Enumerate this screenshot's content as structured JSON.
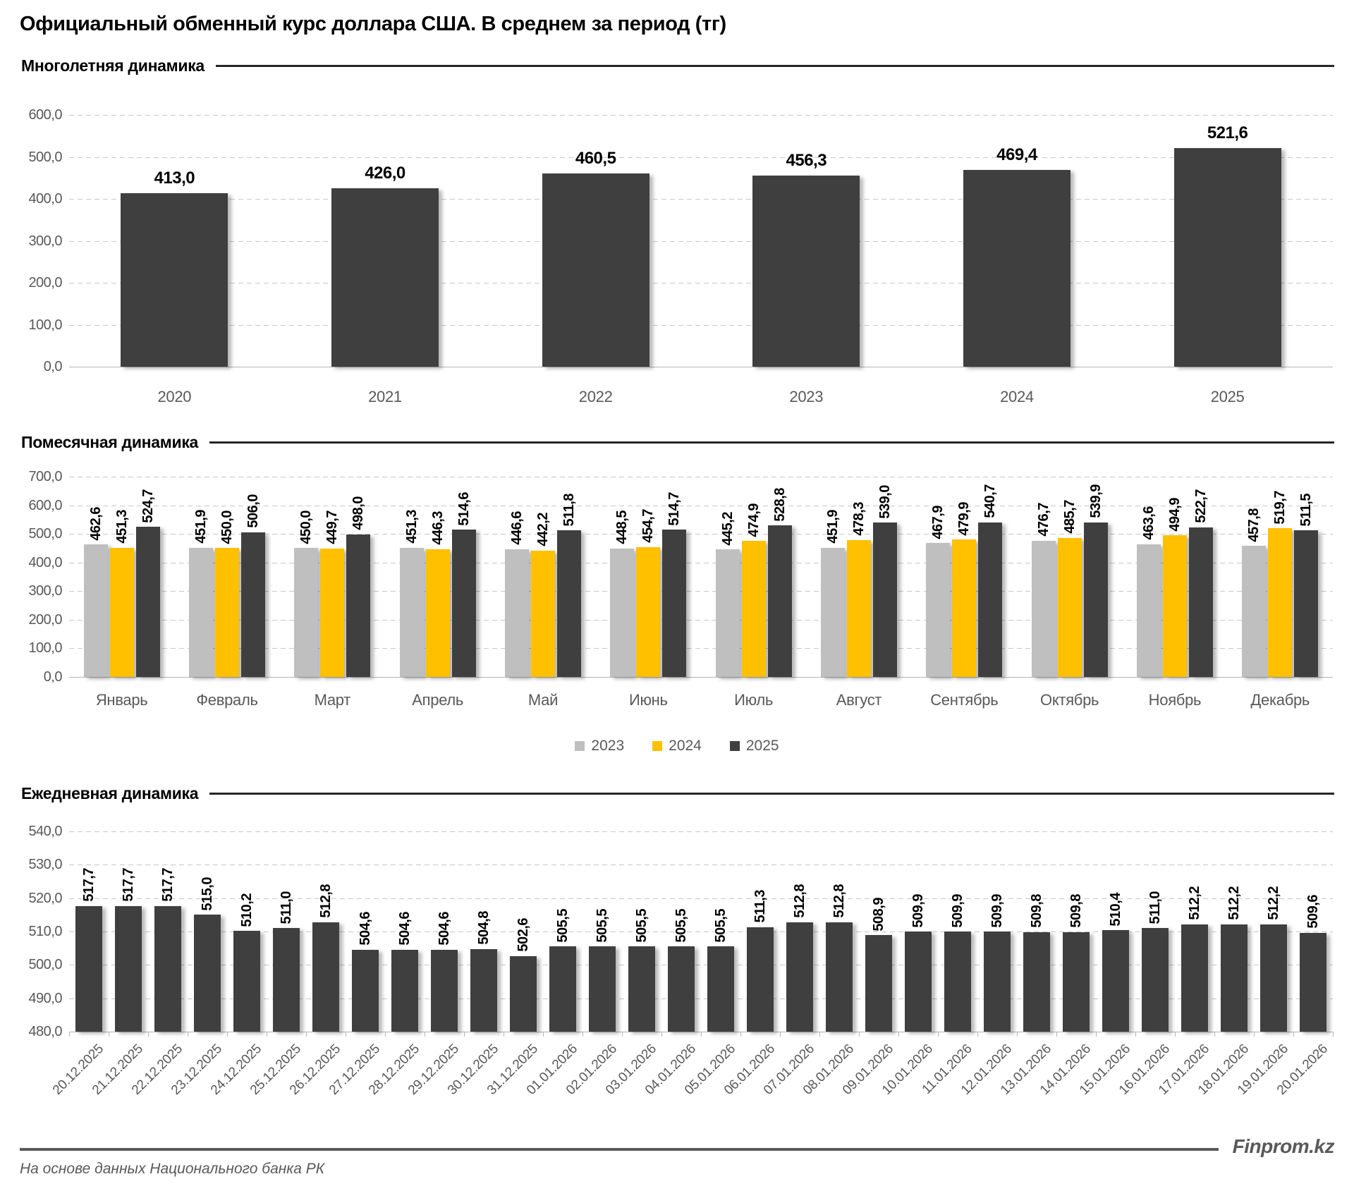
{
  "title": "Официальный обменный курс доллара США. В среднем за период (тг)",
  "footer": {
    "source_note": "На основе данных Национального банка РК",
    "brand": "Finprom.kz"
  },
  "colors": {
    "bar_dark": "#3F3F3F",
    "bar_yellow": "#FFC000",
    "bar_gray": "#BFBFBF",
    "axis_text": "#595959",
    "gridline": "#C7C7C7"
  },
  "chart_data": [
    {
      "type": "bar",
      "section_title": "Многолетняя динамика",
      "categories": [
        "2020",
        "2021",
        "2022",
        "2023",
        "2024",
        "2025"
      ],
      "values": [
        413.0,
        426.0,
        460.5,
        456.3,
        469.4,
        521.6
      ],
      "bar_color": "#3F3F3F",
      "ylim": [
        0,
        600
      ],
      "ytick_step": 100,
      "grid": true,
      "legend_position": "none"
    },
    {
      "type": "bar",
      "section_title": "Помесячная динамика",
      "categories": [
        "Январь",
        "Февраль",
        "Март",
        "Апрель",
        "Май",
        "Июнь",
        "Июль",
        "Август",
        "Сентябрь",
        "Октябрь",
        "Ноябрь",
        "Декабрь"
      ],
      "series": [
        {
          "name": "2023",
          "color": "#BFBFBF",
          "values": [
            462.6,
            451.9,
            450.0,
            451.3,
            446.6,
            448.5,
            445.2,
            451.9,
            467.9,
            476.7,
            463.6,
            457.8
          ]
        },
        {
          "name": "2024",
          "color": "#FFC000",
          "values": [
            451.3,
            450.0,
            449.7,
            446.3,
            442.2,
            454.7,
            474.9,
            478.3,
            479.9,
            485.7,
            494.9,
            519.7
          ]
        },
        {
          "name": "2025",
          "color": "#3F3F3F",
          "values": [
            524.7,
            506.0,
            498.0,
            514.6,
            511.8,
            514.7,
            528.8,
            539.0,
            540.7,
            539.9,
            522.7,
            511.5
          ]
        }
      ],
      "ylim": [
        0,
        700
      ],
      "ytick_step": 100,
      "grid": true,
      "legend_position": "bottom"
    },
    {
      "type": "bar",
      "section_title": "Ежедневная динамика",
      "categories": [
        "20.12.2025",
        "21.12.2025",
        "22.12.2025",
        "23.12.2025",
        "24.12.2025",
        "25.12.2025",
        "26.12.2025",
        "27.12.2025",
        "28.12.2025",
        "29.12.2025",
        "30.12.2025",
        "31.12.2025",
        "01.01.2026",
        "02.01.2026",
        "03.01.2026",
        "04.01.2026",
        "05.01.2026",
        "06.01.2026",
        "07.01.2026",
        "08.01.2026",
        "09.01.2026",
        "10.01.2026",
        "11.01.2026",
        "12.01.2026",
        "13.01.2026",
        "14.01.2026",
        "15.01.2026",
        "16.01.2026",
        "17.01.2026",
        "18.01.2026",
        "19.01.2026",
        "20.01.2026"
      ],
      "values": [
        517.7,
        517.7,
        517.7,
        515.0,
        510.2,
        511.0,
        512.8,
        504.6,
        504.6,
        504.6,
        504.8,
        502.6,
        505.5,
        505.5,
        505.5,
        505.5,
        505.5,
        511.3,
        512.8,
        512.8,
        508.9,
        509.9,
        509.9,
        509.9,
        509.8,
        509.8,
        510.4,
        511.0,
        512.2,
        512.2,
        512.2,
        509.6
      ],
      "bar_color": "#3F3F3F",
      "ylim": [
        480,
        540
      ],
      "ytick_step": 10,
      "grid": true,
      "legend_position": "none"
    }
  ]
}
